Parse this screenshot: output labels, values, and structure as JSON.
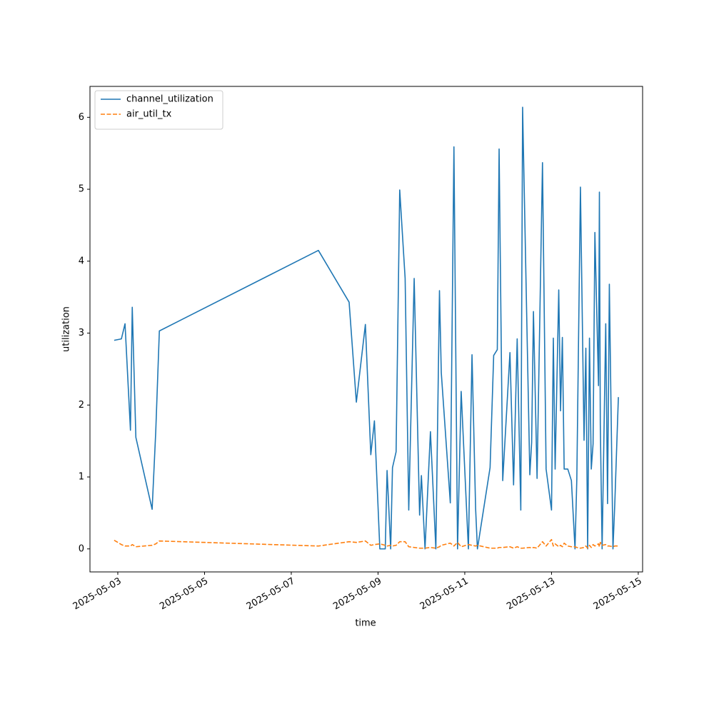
{
  "chart_data": {
    "type": "line",
    "x_label": "time",
    "y_label": "utilization",
    "x": [
      "2025-05-02 22:00",
      "2025-05-03 02:00",
      "2025-05-03 04:00",
      "2025-05-03 07:00",
      "2025-05-03 08:00",
      "2025-05-03 10:00",
      "2025-05-03 19:00",
      "2025-05-03 21:00",
      "2025-05-03 23:00",
      "2025-05-07 15:00",
      "2025-05-08 08:00",
      "2025-05-08 12:00",
      "2025-05-08 17:00",
      "2025-05-08 20:00",
      "2025-05-08 22:00",
      "2025-05-09 01:00",
      "2025-05-09 04:00",
      "2025-05-09 05:00",
      "2025-05-09 07:00",
      "2025-05-09 08:00",
      "2025-05-09 10:00",
      "2025-05-09 12:00",
      "2025-05-09 15:00",
      "2025-05-09 17:00",
      "2025-05-09 20:00",
      "2025-05-09 23:00",
      "2025-05-10 00:00",
      "2025-05-10 02:00",
      "2025-05-10 05:00",
      "2025-05-10 08:00",
      "2025-05-10 10:00",
      "2025-05-10 11:00",
      "2025-05-10 16:00",
      "2025-05-10 18:00",
      "2025-05-10 20:00",
      "2025-05-10 22:00",
      "2025-05-11 02:00",
      "2025-05-11 04:00",
      "2025-05-11 06:00",
      "2025-05-11 07:00",
      "2025-05-11 14:00",
      "2025-05-11 16:00",
      "2025-05-11 18:00",
      "2025-05-11 19:00",
      "2025-05-11 21:00",
      "2025-05-12 01:00",
      "2025-05-12 03:00",
      "2025-05-12 05:00",
      "2025-05-12 07:00",
      "2025-05-12 08:00",
      "2025-05-12 12:00",
      "2025-05-12 13:00",
      "2025-05-12 14:00",
      "2025-05-12 16:00",
      "2025-05-12 19:00",
      "2025-05-12 21:00",
      "2025-05-13 00:00",
      "2025-05-13 01:00",
      "2025-05-13 02:00",
      "2025-05-13 04:00",
      "2025-05-13 05:00",
      "2025-05-13 06:00",
      "2025-05-13 07:00",
      "2025-05-13 09:00",
      "2025-05-13 11:00",
      "2025-05-13 13:00",
      "2025-05-13 14:00",
      "2025-05-13 16:00",
      "2025-05-13 18:00",
      "2025-05-13 19:00",
      "2025-05-13 20:00",
      "2025-05-13 21:00",
      "2025-05-13 22:00",
      "2025-05-13 23:00",
      "2025-05-14 00:00",
      "2025-05-14 02:00",
      "2025-05-14 02:30",
      "2025-05-14 03:00",
      "2025-05-14 04:00",
      "2025-05-14 06:00",
      "2025-05-14 07:00",
      "2025-05-14 08:00",
      "2025-05-14 10:00",
      "2025-05-14 11:00",
      "2025-05-14 13:00"
    ],
    "series": [
      {
        "name": "channel_utilization",
        "color": "#1f77b4",
        "linestyle": "solid",
        "values": [
          2.9,
          2.92,
          3.13,
          1.65,
          3.36,
          1.55,
          0.55,
          1.63,
          3.03,
          4.15,
          3.43,
          2.04,
          3.12,
          1.31,
          1.78,
          0,
          0,
          1.09,
          0,
          1.13,
          1.35,
          4.99,
          3.76,
          0.54,
          3.76,
          0.47,
          1.02,
          0,
          1.63,
          0,
          3.59,
          2.45,
          0.64,
          5.59,
          0,
          2.19,
          0,
          2.7,
          0.56,
          0,
          1.13,
          2.69,
          2.77,
          5.56,
          0.95,
          2.73,
          0.89,
          2.92,
          0.54,
          6.14,
          1.03,
          1.48,
          3.3,
          0.98,
          5.37,
          1.11,
          0.54,
          2.93,
          1.11,
          3.6,
          1.92,
          2.94,
          1.11,
          1.11,
          0.95,
          0,
          0.97,
          5.03,
          1.51,
          2.79,
          0,
          2.93,
          1.11,
          1.46,
          4.4,
          2.27,
          4.96,
          1.73,
          0,
          3.13,
          0.63,
          3.68,
          0,
          0.62,
          2.11
        ]
      },
      {
        "name": "air_util_tx",
        "color": "#ff7f0e",
        "linestyle": "dashed",
        "values": [
          0.12,
          0.06,
          0.04,
          0.04,
          0.06,
          0.03,
          0.05,
          0.07,
          0.11,
          0.04,
          0.1,
          0.09,
          0.11,
          0.05,
          0.06,
          0.07,
          0.05,
          0.04,
          0.05,
          0.04,
          0.05,
          0.1,
          0.1,
          0.03,
          0.02,
          0.01,
          0.01,
          0.01,
          0.02,
          0.01,
          0.03,
          0.05,
          0.08,
          0.04,
          0.09,
          0.03,
          0.06,
          0.05,
          0.04,
          0.05,
          0.01,
          0.01,
          0.01,
          0.02,
          0.02,
          0.03,
          0.01,
          0.03,
          0.01,
          0.01,
          0.02,
          0.01,
          0.02,
          0.01,
          0.1,
          0.04,
          0.13,
          0.04,
          0.07,
          0.03,
          0.05,
          0.03,
          0.08,
          0.04,
          0.03,
          0.03,
          0.02,
          0.01,
          0.02,
          0.04,
          0.01,
          0.05,
          0.02,
          0.06,
          0.04,
          0.07,
          0.03,
          0.09,
          0.05,
          0.06,
          0.04,
          0.04,
          0.03,
          0.04,
          0.04
        ]
      }
    ],
    "xlim": [
      "2025-05-02 08:36",
      "2025-05-15 02:24"
    ],
    "xticks": [
      "2025-05-03",
      "2025-05-05",
      "2025-05-07",
      "2025-05-09",
      "2025-05-11",
      "2025-05-13",
      "2025-05-15"
    ],
    "ylim": [
      -0.32,
      6.43
    ],
    "yticks": [
      0,
      1,
      2,
      3,
      4,
      5,
      6
    ],
    "legend": "upper left"
  }
}
